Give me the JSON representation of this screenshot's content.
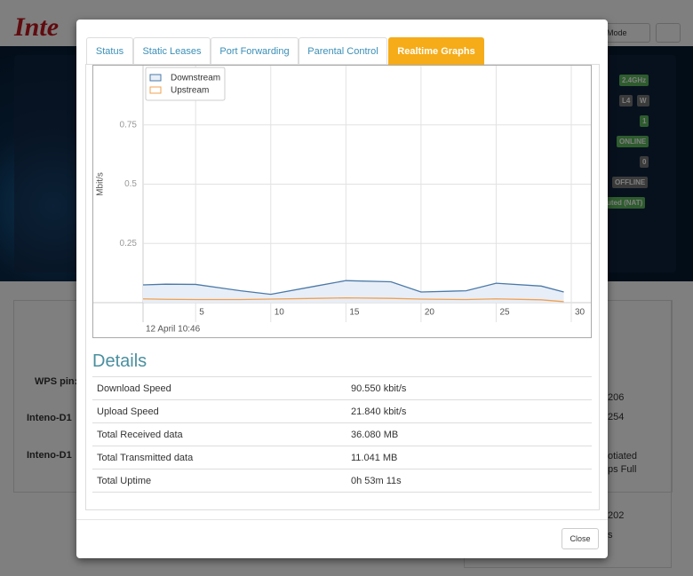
{
  "background": {
    "logo": "Inte",
    "mode": "Mode",
    "badges": [
      "2.4GHz",
      "L4",
      "W",
      "1",
      "ONLINE",
      "0",
      "OFFLINE",
      "uted (NAT)"
    ],
    "wps": "WPS pin:",
    "devices": [
      "Inteno-D1",
      "Inteno-D1"
    ],
    "right_texts": [
      "206",
      "254",
      "otiated",
      "ps Full",
      "202",
      "s"
    ]
  },
  "tabs": [
    "Status",
    "Static Leases",
    "Port Forwarding",
    "Parental Control",
    "Realtime Graphs"
  ],
  "chart_data": {
    "type": "line",
    "y_label": "Mbit/s",
    "x_caption": "12 April 10:46",
    "x": [
      1.5,
      3,
      5,
      8,
      10,
      13,
      15,
      18,
      20,
      23,
      25,
      28,
      29.5
    ],
    "series": [
      {
        "name": "Downstream",
        "color": "#4a79a8",
        "fill": "#e8eef7",
        "values": [
          0.075,
          0.078,
          0.077,
          0.05,
          0.035,
          0.07,
          0.093,
          0.088,
          0.045,
          0.05,
          0.082,
          0.07,
          0.045
        ]
      },
      {
        "name": "Upstream",
        "color": "#f0a050",
        "values": [
          0.016,
          0.014,
          0.013,
          0.013,
          0.015,
          0.018,
          0.02,
          0.018,
          0.015,
          0.013,
          0.016,
          0.012,
          0.004
        ]
      }
    ],
    "xlim": [
      1.5,
      31.3
    ],
    "ylim": [
      0,
      1
    ],
    "xticks": [
      5,
      10,
      15,
      20,
      25,
      30
    ],
    "yticks": [
      0.25,
      0.5,
      0.75
    ],
    "grid": true
  },
  "details": {
    "title": "Details",
    "rows": [
      [
        "Download Speed",
        "90.550 kbit/s"
      ],
      [
        "Upload Speed",
        "21.840 kbit/s"
      ],
      [
        "Total Received data",
        "36.080 MB"
      ],
      [
        "Total Transmitted data",
        "11.041 MB"
      ],
      [
        "Total Uptime",
        "0h 53m 11s"
      ]
    ]
  },
  "close": "Close"
}
